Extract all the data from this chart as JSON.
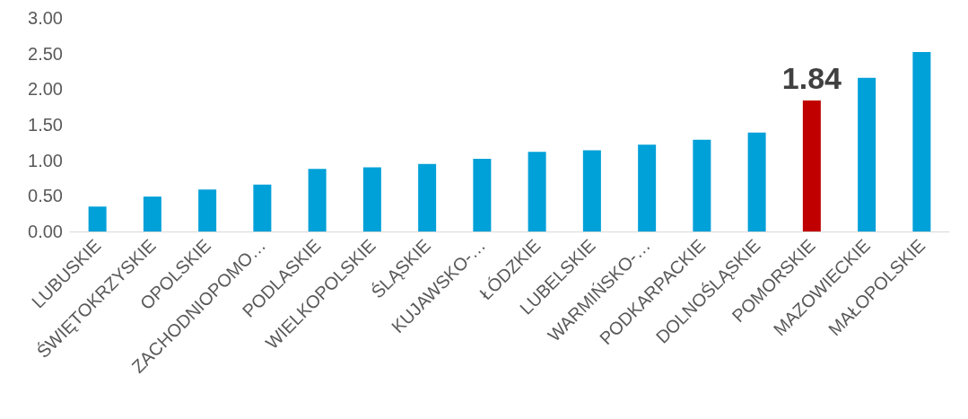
{
  "chart_data": {
    "type": "bar",
    "categories": [
      "LUBUSKIE",
      "ŚWIĘTOKRZYSKIE",
      "OPOLSKIE",
      "ZACHODNIOPOMO…",
      "PODLASKIE",
      "WIELKOPOLSKIE",
      "ŚLĄSKIE",
      "KUJAWSKO-…",
      "ŁÓDZKIE",
      "LUBELSKIE",
      "WARMIŃSKO-…",
      "PODKARPACKIE",
      "DOLNOŚLĄSKIE",
      "POMORSKIE",
      "MAZOWIECKIE",
      "MAŁOPOLSKIE"
    ],
    "values": [
      0.35,
      0.49,
      0.59,
      0.66,
      0.88,
      0.9,
      0.95,
      1.02,
      1.12,
      1.14,
      1.22,
      1.29,
      1.39,
      1.84,
      2.16,
      2.52
    ],
    "colors": [
      "#00a0d8",
      "#00a0d8",
      "#00a0d8",
      "#00a0d8",
      "#00a0d8",
      "#00a0d8",
      "#00a0d8",
      "#00a0d8",
      "#00a0d8",
      "#00a0d8",
      "#00a0d8",
      "#00a0d8",
      "#00a0d8",
      "#c00000",
      "#00a0d8",
      "#00a0d8"
    ],
    "value_labels": [
      null,
      null,
      null,
      null,
      null,
      null,
      null,
      null,
      null,
      null,
      null,
      null,
      null,
      "1.84",
      null,
      null
    ],
    "ylim": [
      0,
      3
    ],
    "yticks": [
      {
        "value": 0,
        "label": "0.00"
      },
      {
        "value": 0.5,
        "label": "0.50"
      },
      {
        "value": 1,
        "label": "1.00"
      },
      {
        "value": 1.5,
        "label": "1.50"
      },
      {
        "value": 2,
        "label": "2.00"
      },
      {
        "value": 2.5,
        "label": "2.50"
      },
      {
        "value": 3,
        "label": "3.00"
      }
    ],
    "data_labels": false
  }
}
